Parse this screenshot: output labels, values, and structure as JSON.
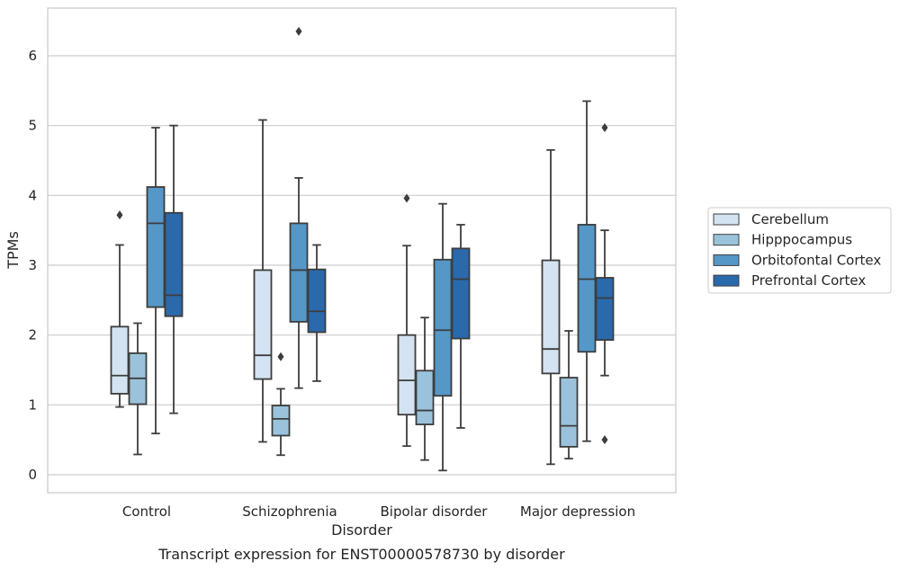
{
  "chart_data": {
    "type": "box",
    "title": "",
    "caption": "Transcript expression for ENST00000578730 by disorder",
    "xlabel": "Disorder",
    "ylabel": "TPMs",
    "ylim": [
      -0.25,
      6.7
    ],
    "yticks": [
      0,
      1,
      2,
      3,
      4,
      5,
      6
    ],
    "grid": "horizontal",
    "legend_position": "right",
    "categories": [
      "Control",
      "Schizophrenia",
      "Bipolar disorder",
      "Major depression"
    ],
    "series": [
      {
        "name": "Cerebellum",
        "color": "#d3e3f1",
        "boxes": [
          {
            "whisker_low": 0.97,
            "q1": 1.16,
            "median": 1.42,
            "q3": 2.12,
            "whisker_high": 3.29,
            "outliers": [
              3.72
            ]
          },
          {
            "whisker_low": 0.47,
            "q1": 1.37,
            "median": 1.71,
            "q3": 2.93,
            "whisker_high": 5.08,
            "outliers": []
          },
          {
            "whisker_low": 0.41,
            "q1": 0.86,
            "median": 1.35,
            "q3": 2.0,
            "whisker_high": 3.28,
            "outliers": [
              3.96
            ]
          },
          {
            "whisker_low": 0.15,
            "q1": 1.45,
            "median": 1.8,
            "q3": 3.07,
            "whisker_high": 4.65,
            "outliers": []
          }
        ]
      },
      {
        "name": "Hipppocampus",
        "color": "#9ac3db",
        "boxes": [
          {
            "whisker_low": 0.29,
            "q1": 1.01,
            "median": 1.38,
            "q3": 1.74,
            "whisker_high": 2.17,
            "outliers": []
          },
          {
            "whisker_low": 0.28,
            "q1": 0.56,
            "median": 0.8,
            "q3": 0.99,
            "whisker_high": 1.23,
            "outliers": [
              1.69
            ]
          },
          {
            "whisker_low": 0.21,
            "q1": 0.72,
            "median": 0.92,
            "q3": 1.49,
            "whisker_high": 2.25,
            "outliers": []
          },
          {
            "whisker_low": 0.23,
            "q1": 0.4,
            "median": 0.7,
            "q3": 1.39,
            "whisker_high": 2.06,
            "outliers": []
          }
        ]
      },
      {
        "name": "Orbitofontal Cortex",
        "color": "#5597c7",
        "boxes": [
          {
            "whisker_low": 0.59,
            "q1": 2.4,
            "median": 3.6,
            "q3": 4.12,
            "whisker_high": 4.97,
            "outliers": []
          },
          {
            "whisker_low": 1.24,
            "q1": 2.19,
            "median": 2.93,
            "q3": 3.6,
            "whisker_high": 4.25,
            "outliers": [
              6.35
            ]
          },
          {
            "whisker_low": 0.06,
            "q1": 1.13,
            "median": 2.07,
            "q3": 3.08,
            "whisker_high": 3.88,
            "outliers": []
          },
          {
            "whisker_low": 0.48,
            "q1": 1.76,
            "median": 2.8,
            "q3": 3.58,
            "whisker_high": 5.35,
            "outliers": []
          }
        ]
      },
      {
        "name": "Prefrontal Cortex",
        "color": "#2a69ab",
        "boxes": [
          {
            "whisker_low": 0.88,
            "q1": 2.27,
            "median": 2.57,
            "q3": 3.75,
            "whisker_high": 5.0,
            "outliers": []
          },
          {
            "whisker_low": 1.34,
            "q1": 2.04,
            "median": 2.34,
            "q3": 2.94,
            "whisker_high": 3.29,
            "outliers": []
          },
          {
            "whisker_low": 0.67,
            "q1": 1.95,
            "median": 2.8,
            "q3": 3.24,
            "whisker_high": 3.58,
            "outliers": []
          },
          {
            "whisker_low": 1.42,
            "q1": 1.93,
            "median": 2.53,
            "q3": 2.82,
            "whisker_high": 3.5,
            "outliers": [
              4.97,
              0.5
            ]
          }
        ]
      }
    ]
  }
}
